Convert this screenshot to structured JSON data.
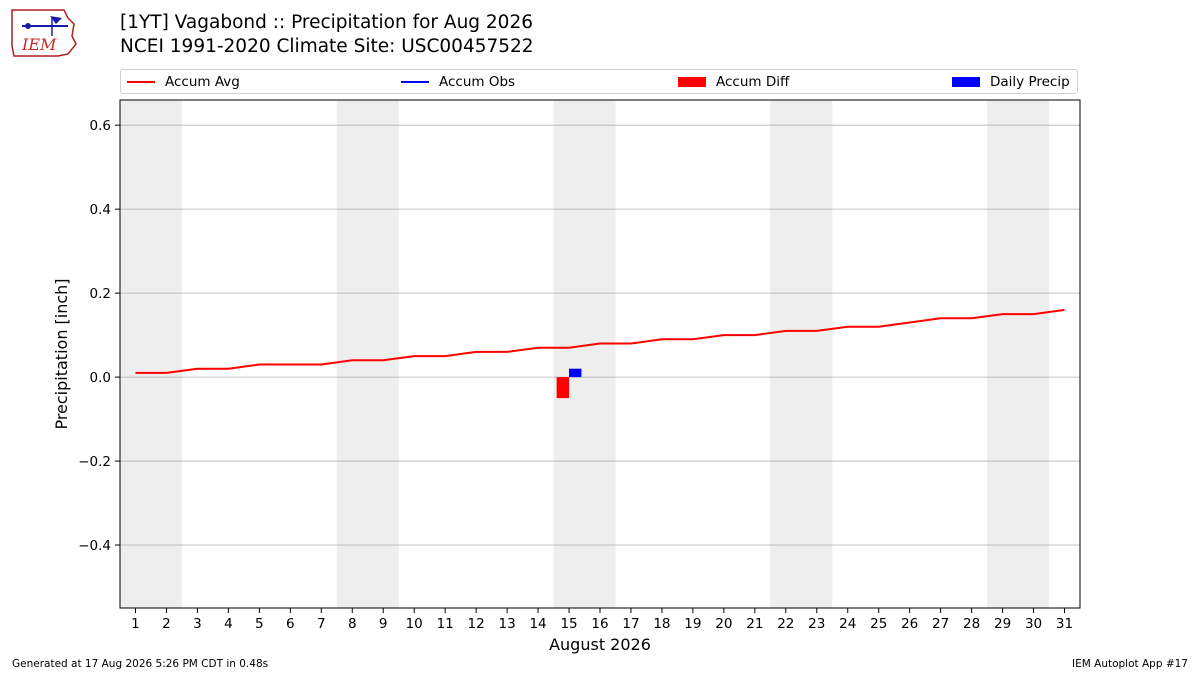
{
  "header": {
    "title_line1": "[1YT] Vagabond :: Precipitation for Aug 2026",
    "title_line2": "NCEI 1991-2020 Climate Site: USC00457522",
    "logo_text": "IEM"
  },
  "legend": {
    "items": [
      {
        "label": "Accum Avg",
        "kind": "line",
        "color": "#ff0000"
      },
      {
        "label": "Accum Obs",
        "kind": "line",
        "color": "#0000ff"
      },
      {
        "label": "Accum Diff",
        "kind": "patch",
        "color": "#ff0000"
      },
      {
        "label": "Daily Precip",
        "kind": "patch",
        "color": "#0000ff"
      }
    ]
  },
  "chart_data": {
    "type": "line",
    "xlabel": "August 2026",
    "ylabel": "Precipitation [inch]",
    "xlim": [
      0.5,
      31.5
    ],
    "ylim": [
      -0.55,
      0.66
    ],
    "x_ticks": [
      1,
      2,
      3,
      4,
      5,
      6,
      7,
      8,
      9,
      10,
      11,
      12,
      13,
      14,
      15,
      16,
      17,
      18,
      19,
      20,
      21,
      22,
      23,
      24,
      25,
      26,
      27,
      28,
      29,
      30,
      31
    ],
    "y_ticks": [
      -0.4,
      -0.2,
      0.0,
      0.2,
      0.4,
      0.6
    ],
    "y_tick_labels": [
      "−0.4",
      "−0.2",
      "0.0",
      "0.2",
      "0.4",
      "0.6"
    ],
    "grid": "horizontal",
    "weekend_shading": [
      [
        1,
        2
      ],
      [
        8,
        9
      ],
      [
        15,
        16
      ],
      [
        22,
        23
      ],
      [
        29,
        30
      ]
    ],
    "shade_color": "#eeeeee",
    "series": [
      {
        "name": "Accum Avg",
        "type": "line",
        "color": "#ff0000",
        "x": [
          1,
          2,
          3,
          4,
          5,
          6,
          7,
          8,
          9,
          10,
          11,
          12,
          13,
          14,
          15,
          16,
          17,
          18,
          19,
          20,
          21,
          22,
          23,
          24,
          25,
          26,
          27,
          28,
          29,
          30,
          31
        ],
        "y": [
          0.01,
          0.01,
          0.02,
          0.02,
          0.03,
          0.03,
          0.03,
          0.04,
          0.04,
          0.05,
          0.05,
          0.06,
          0.06,
          0.07,
          0.07,
          0.08,
          0.08,
          0.09,
          0.09,
          0.1,
          0.1,
          0.11,
          0.11,
          0.12,
          0.12,
          0.13,
          0.14,
          0.14,
          0.15,
          0.15,
          0.16
        ]
      },
      {
        "name": "Accum Obs",
        "type": "line",
        "color": "#0000ff",
        "x": [],
        "y": []
      },
      {
        "name": "Accum Diff",
        "type": "bar",
        "color": "#ff0000",
        "x": [
          15
        ],
        "y": [
          -0.05
        ]
      },
      {
        "name": "Daily Precip",
        "type": "bar",
        "color": "#0000ff",
        "x": [
          15
        ],
        "y": [
          0.02
        ]
      }
    ]
  },
  "footer": {
    "generated": "Generated at 17 Aug 2026 5:26 PM CDT in 0.48s",
    "app": "IEM Autoplot App #17"
  }
}
